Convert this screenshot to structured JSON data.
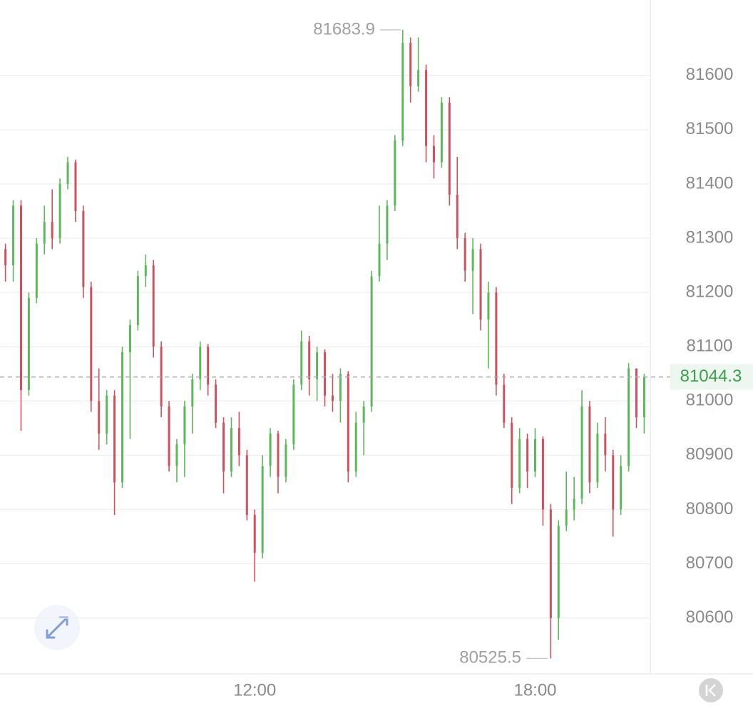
{
  "chart_data": {
    "type": "candlestick",
    "x": [
      "06:40",
      "06:50",
      "07:00",
      "07:10",
      "07:20",
      "07:30",
      "07:40",
      "07:50",
      "08:00",
      "08:10",
      "08:20",
      "08:30",
      "08:40",
      "08:50",
      "09:00",
      "09:10",
      "09:20",
      "09:30",
      "09:40",
      "09:50",
      "10:00",
      "10:10",
      "10:20",
      "10:30",
      "10:40",
      "10:50",
      "11:00",
      "11:10",
      "11:20",
      "11:30",
      "11:40",
      "11:50",
      "12:00",
      "12:10",
      "12:20",
      "12:30",
      "12:40",
      "12:50",
      "13:00",
      "13:10",
      "13:20",
      "13:30",
      "13:40",
      "13:50",
      "14:00",
      "14:10",
      "14:20",
      "14:30",
      "14:40",
      "14:50",
      "15:00",
      "15:10",
      "15:20",
      "15:30",
      "15:40",
      "15:50",
      "16:00",
      "16:10",
      "16:20",
      "16:30",
      "16:40",
      "16:50",
      "17:00",
      "17:10",
      "17:20",
      "17:30",
      "17:40",
      "17:50",
      "18:00",
      "18:10",
      "18:20",
      "18:30",
      "18:40",
      "18:50",
      "19:00",
      "19:10",
      "19:20",
      "19:30",
      "19:40",
      "19:50",
      "20:00",
      "20:10",
      "20:20"
    ],
    "ohlc": [
      [
        81280,
        81290,
        81220,
        81250
      ],
      [
        81250,
        81370,
        81220,
        81360
      ],
      [
        81360,
        81370,
        80945,
        81020
      ],
      [
        81020,
        81200,
        81010,
        81190
      ],
      [
        81190,
        81300,
        81180,
        81290
      ],
      [
        81290,
        81360,
        81270,
        81330
      ],
      [
        81330,
        81390,
        81280,
        81300
      ],
      [
        81300,
        81410,
        81290,
        81400
      ],
      [
        81400,
        81450,
        81390,
        81440
      ],
      [
        81440,
        81445,
        81330,
        81350
      ],
      [
        81350,
        81360,
        81190,
        81210
      ],
      [
        81210,
        81220,
        80980,
        81000
      ],
      [
        81000,
        81060,
        80910,
        80940
      ],
      [
        80940,
        81020,
        80920,
        81010
      ],
      [
        81010,
        81020,
        80790,
        80850
      ],
      [
        80850,
        81100,
        80840,
        81090
      ],
      [
        81090,
        81150,
        80930,
        81140
      ],
      [
        81140,
        81240,
        81130,
        81230
      ],
      [
        81230,
        81270,
        81210,
        81250
      ],
      [
        81250,
        81260,
        81080,
        81100
      ],
      [
        81100,
        81110,
        80970,
        80990
      ],
      [
        80990,
        81000,
        80870,
        80880
      ],
      [
        80880,
        80930,
        80850,
        80920
      ],
      [
        80920,
        81000,
        80860,
        80990
      ],
      [
        80990,
        81050,
        80940,
        81040
      ],
      [
        81040,
        81110,
        81020,
        81100
      ],
      [
        81100,
        81105,
        81010,
        81030
      ],
      [
        81030,
        81040,
        80950,
        80960
      ],
      [
        80960,
        80970,
        80830,
        80870
      ],
      [
        80870,
        80970,
        80860,
        80950
      ],
      [
        80950,
        80980,
        80880,
        80900
      ],
      [
        80900,
        80910,
        80780,
        80790
      ],
      [
        80790,
        80800,
        80667,
        80720
      ],
      [
        80720,
        80900,
        80710,
        80880
      ],
      [
        80880,
        80950,
        80860,
        80940
      ],
      [
        80940,
        80945,
        80830,
        80860
      ],
      [
        80860,
        80930,
        80850,
        80920
      ],
      [
        80920,
        81040,
        80910,
        81030
      ],
      [
        81030,
        81130,
        81020,
        81110
      ],
      [
        81110,
        81120,
        81010,
        81040
      ],
      [
        81040,
        81100,
        81000,
        81090
      ],
      [
        81090,
        81095,
        80990,
        81010
      ],
      [
        81010,
        81050,
        80980,
        81000
      ],
      [
        81000,
        81060,
        80960,
        81050
      ],
      [
        81050,
        81055,
        80850,
        80870
      ],
      [
        80870,
        80980,
        80860,
        80960
      ],
      [
        80960,
        81000,
        80900,
        80990
      ],
      [
        80990,
        81240,
        80980,
        81230
      ],
      [
        81230,
        81360,
        81220,
        81290
      ],
      [
        81290,
        81370,
        81260,
        81360
      ],
      [
        81360,
        81490,
        81350,
        81480
      ],
      [
        81480,
        81683.9,
        81470,
        81660
      ],
      [
        81660,
        81670,
        81550,
        81580
      ],
      [
        81580,
        81670,
        81570,
        81610
      ],
      [
        81610,
        81620,
        81440,
        81470
      ],
      [
        81470,
        81490,
        81410,
        81440
      ],
      [
        81440,
        81560,
        81430,
        81550
      ],
      [
        81550,
        81560,
        81360,
        81380
      ],
      [
        81380,
        81450,
        81280,
        81300
      ],
      [
        81300,
        81310,
        81220,
        81240
      ],
      [
        81240,
        81300,
        81160,
        81280
      ],
      [
        81280,
        81290,
        81130,
        81150
      ],
      [
        81150,
        81220,
        81060,
        81200
      ],
      [
        81200,
        81210,
        81010,
        81030
      ],
      [
        81030,
        81050,
        80950,
        80960
      ],
      [
        80960,
        80970,
        80810,
        80840
      ],
      [
        80840,
        80950,
        80830,
        80930
      ],
      [
        80930,
        80940,
        80840,
        80870
      ],
      [
        80870,
        80950,
        80860,
        80930
      ],
      [
        80930,
        80935,
        80770,
        80800
      ],
      [
        80800,
        80810,
        80525.5,
        80600
      ],
      [
        80600,
        80780,
        80560,
        80770
      ],
      [
        80770,
        80870,
        80760,
        80800
      ],
      [
        80800,
        80860,
        80780,
        80820
      ],
      [
        80820,
        81020,
        80810,
        80990
      ],
      [
        80990,
        81000,
        80830,
        80850
      ],
      [
        80850,
        80960,
        80840,
        80940
      ],
      [
        80940,
        80970,
        80870,
        80900
      ],
      [
        80900,
        80910,
        80750,
        80800
      ],
      [
        80800,
        80900,
        80790,
        80880
      ],
      [
        80880,
        81070,
        80870,
        81060
      ],
      [
        81060,
        81060,
        80950,
        80970
      ],
      [
        80970,
        81050,
        80940,
        81044.3
      ]
    ],
    "up_color": "#5cb85c",
    "down_color": "#d0505e",
    "xlim": [
      "06:33",
      "20:26"
    ],
    "xticks": [
      "12:00",
      "18:00"
    ],
    "ylim": [
      80497,
      81739
    ],
    "yticks": [
      80600,
      80700,
      80800,
      80900,
      81000,
      81100,
      81200,
      81300,
      81400,
      81500,
      81600
    ],
    "grid": true,
    "high_annotation": 81683.9,
    "low_annotation": 80525.5,
    "last_price": 81044.3,
    "last_price_color": "#3a9f4c"
  }
}
